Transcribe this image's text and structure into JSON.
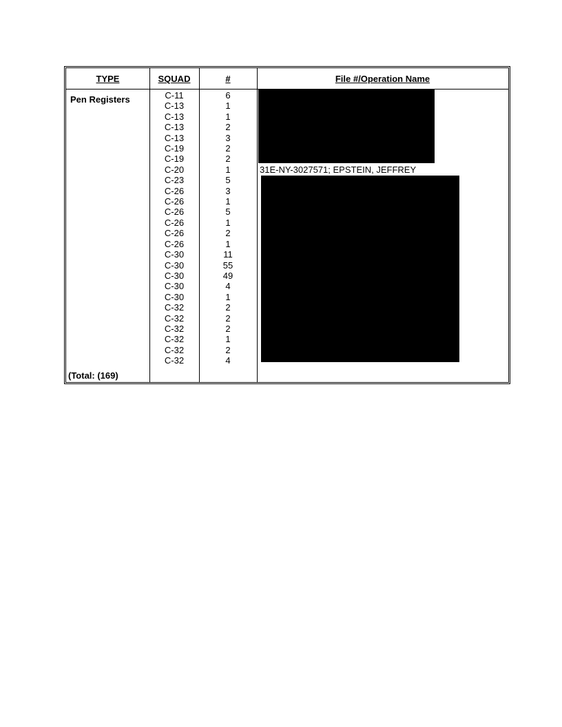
{
  "headers": {
    "type": "TYPE",
    "squad": "SQUAD",
    "count": "#",
    "file": "File #/Operation Name"
  },
  "type_label": "Pen Registers",
  "total_label": "(Total: (169)",
  "rows": [
    {
      "squad": "C-11",
      "count": "6"
    },
    {
      "squad": "C-13",
      "count": "1"
    },
    {
      "squad": "C-13",
      "count": "1"
    },
    {
      "squad": "C-13",
      "count": "2"
    },
    {
      "squad": "C-13",
      "count": "3"
    },
    {
      "squad": "C-19",
      "count": "2"
    },
    {
      "squad": "C-19",
      "count": "2"
    },
    {
      "squad": "C-20",
      "count": "1"
    },
    {
      "squad": "C-23",
      "count": "5"
    },
    {
      "squad": "C-26",
      "count": "3"
    },
    {
      "squad": "C-26",
      "count": "1"
    },
    {
      "squad": "C-26",
      "count": "5"
    },
    {
      "squad": "C-26",
      "count": "1"
    },
    {
      "squad": "C-26",
      "count": "2"
    },
    {
      "squad": "C-26",
      "count": "1"
    },
    {
      "squad": "C-30",
      "count": "11"
    },
    {
      "squad": "C-30",
      "count": "55"
    },
    {
      "squad": "C-30",
      "count": "49"
    },
    {
      "squad": "C-30",
      "count": "4"
    },
    {
      "squad": "C-30",
      "count": "1"
    },
    {
      "squad": "C-32",
      "count": "2"
    },
    {
      "squad": "C-32",
      "count": "2"
    },
    {
      "squad": "C-32",
      "count": "2"
    },
    {
      "squad": "C-32",
      "count": "1"
    },
    {
      "squad": "C-32",
      "count": "2"
    },
    {
      "squad": "C-32",
      "count": "4"
    }
  ],
  "visible_file_entry": "31E-NY-3027571; EPSTEIN, JEFFREY"
}
